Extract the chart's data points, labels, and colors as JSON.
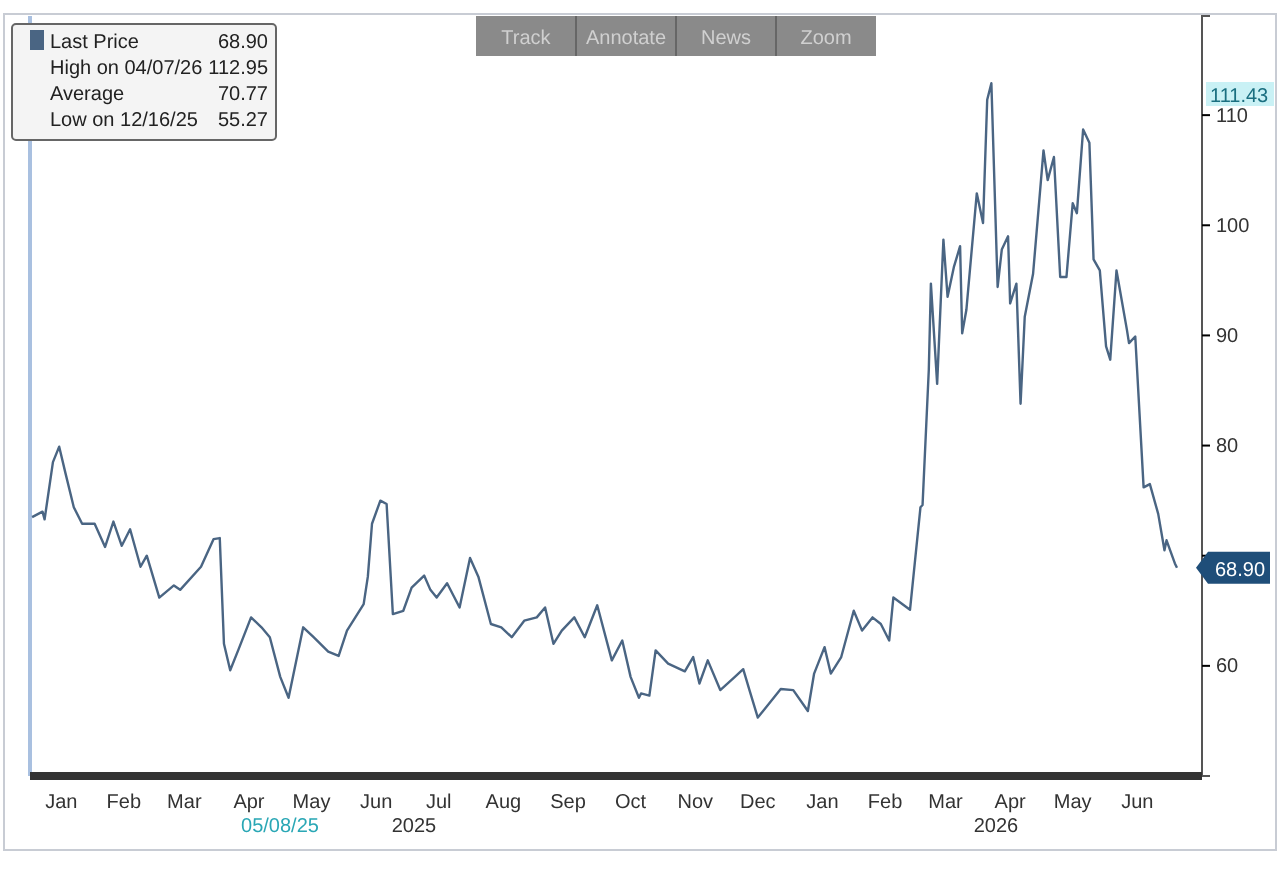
{
  "chart_data": {
    "type": "line",
    "legend": "top left",
    "xlim": [
      "2025-01-01",
      "2026-07-17"
    ],
    "ylim": [
      50,
      119
    ],
    "yticks": [
      60,
      {
        "value": 70,
        "label": null
      },
      80,
      90,
      100,
      110
    ],
    "xticks": [
      {
        "value": "2025-01-16",
        "label": "Jan"
      },
      {
        "value": "2025-02-15",
        "label": "Feb"
      },
      {
        "value": "2025-03-16",
        "label": "Mar"
      },
      {
        "value": "2025-04-16",
        "label": "Apr"
      },
      {
        "value": "2025-05-16",
        "label": "May"
      },
      {
        "value": "2025-06-16",
        "label": "Jun"
      },
      {
        "value": "2025-07-16",
        "label": "Jul"
      },
      {
        "value": "2025-08-16",
        "label": "Aug"
      },
      {
        "value": "2025-09-16",
        "label": "Sep"
      },
      {
        "value": "2025-10-16",
        "label": "Oct"
      },
      {
        "value": "2025-11-16",
        "label": "Nov"
      },
      {
        "value": "2025-12-16",
        "label": "Dec"
      },
      {
        "value": "2026-01-16",
        "label": "Jan"
      },
      {
        "value": "2026-02-15",
        "label": "Feb"
      },
      {
        "value": "2026-03-16",
        "label": "Mar"
      },
      {
        "value": "2026-04-16",
        "label": "Apr"
      },
      {
        "value": "2026-05-16",
        "label": "May"
      },
      {
        "value": "2026-06-16",
        "label": "Jun"
      }
    ],
    "annotations": [
      "68.90",
      "High on 04/07/26 112.95",
      "Average 70.77",
      "Low on 12/16/25 55.27",
      "Track",
      "Annotate",
      "News",
      "Zoom",
      "05/08/25",
      "2025",
      "2026",
      "111.43"
    ],
    "series": [
      {
        "name": "Last Price",
        "color": "#4a6583",
        "x": [
          "2025-01-02",
          "2025-01-07",
          "2025-01-08",
          "2025-01-12",
          "2025-01-15",
          "2025-01-18",
          "2025-01-22",
          "2025-01-26",
          "2025-02-01",
          "2025-02-06",
          "2025-02-10",
          "2025-02-14",
          "2025-02-18",
          "2025-02-23",
          "2025-02-26",
          "2025-03-04",
          "2025-03-11",
          "2025-03-14",
          "2025-03-24",
          "2025-03-30",
          "2025-04-02",
          "2025-04-04",
          "2025-04-07",
          "2025-04-11",
          "2025-04-17",
          "2025-04-22",
          "2025-04-26",
          "2025-05-01",
          "2025-05-05",
          "2025-05-12",
          "2025-05-17",
          "2025-05-24",
          "2025-05-29",
          "2025-06-02",
          "2025-06-10",
          "2025-06-12",
          "2025-06-14",
          "2025-06-18",
          "2025-06-21",
          "2025-06-24",
          "2025-06-29",
          "2025-07-03",
          "2025-07-09",
          "2025-07-12",
          "2025-07-15",
          "2025-07-20",
          "2025-07-26",
          "2025-07-31",
          "2025-08-04",
          "2025-08-10",
          "2025-08-15",
          "2025-08-20",
          "2025-08-26",
          "2025-09-01",
          "2025-09-05",
          "2025-09-09",
          "2025-09-13",
          "2025-09-19",
          "2025-09-24",
          "2025-09-30",
          "2025-10-07",
          "2025-10-12",
          "2025-10-16",
          "2025-10-20",
          "2025-10-21",
          "2025-10-25",
          "2025-10-28",
          "2025-11-03",
          "2025-11-11",
          "2025-11-15",
          "2025-11-18",
          "2025-11-22",
          "2025-11-28",
          "2025-12-05",
          "2025-12-09",
          "2025-12-12",
          "2025-12-16",
          "2025-12-27",
          "2026-01-02",
          "2026-01-09",
          "2026-01-12",
          "2026-01-17",
          "2026-01-20",
          "2026-01-25",
          "2026-01-31",
          "2026-02-04",
          "2026-02-09",
          "2026-02-13",
          "2026-02-17",
          "2026-02-19",
          "2026-02-27",
          "2026-03-04",
          "2026-03-05",
          "2026-03-08",
          "2026-03-09",
          "2026-03-12",
          "2026-03-15",
          "2026-03-17",
          "2026-03-20",
          "2026-03-23",
          "2026-03-24",
          "2026-03-26",
          "2026-03-31",
          "2026-04-03",
          "2026-04-05",
          "2026-04-07",
          "2026-04-10",
          "2026-04-12",
          "2026-04-15",
          "2026-04-16",
          "2026-04-19",
          "2026-04-21",
          "2026-04-23",
          "2026-04-27",
          "2026-05-02",
          "2026-05-04",
          "2026-05-07",
          "2026-05-10",
          "2026-05-13",
          "2026-05-16",
          "2026-05-18",
          "2026-05-21",
          "2026-05-24",
          "2026-05-26",
          "2026-05-29",
          "2026-06-01",
          "2026-06-03",
          "2026-06-06",
          "2026-06-11",
          "2026-06-12",
          "2026-06-15",
          "2026-06-19",
          "2026-06-22",
          "2026-06-26",
          "2026-06-29",
          "2026-06-30",
          "2026-07-04",
          "2026-07-05"
        ],
        "values": [
          73.5,
          74.0,
          73.3,
          78.5,
          79.9,
          77.5,
          74.4,
          72.9,
          72.9,
          70.8,
          73.1,
          70.9,
          72.4,
          69.0,
          70.0,
          66.2,
          67.3,
          66.9,
          69.0,
          71.5,
          71.6,
          62.0,
          59.6,
          61.5,
          64.4,
          63.5,
          62.6,
          59.0,
          57.1,
          63.5,
          62.6,
          61.3,
          60.9,
          63.2,
          65.6,
          68.1,
          72.9,
          75.0,
          74.7,
          64.7,
          65.0,
          67.1,
          68.2,
          66.9,
          66.2,
          67.5,
          65.3,
          69.8,
          68.1,
          63.8,
          63.5,
          62.6,
          64.1,
          64.4,
          65.3,
          62.0,
          63.2,
          64.4,
          62.6,
          65.5,
          60.5,
          62.3,
          59.0,
          57.1,
          57.5,
          57.3,
          61.4,
          60.2,
          59.5,
          60.8,
          58.4,
          60.5,
          57.8,
          59.0,
          59.7,
          57.8,
          55.3,
          57.9,
          57.8,
          55.9,
          59.3,
          61.7,
          59.3,
          60.8,
          65.0,
          63.2,
          64.4,
          63.8,
          62.3,
          66.2,
          65.1,
          74.4,
          74.6,
          86.9,
          94.7,
          85.6,
          98.7,
          93.5,
          96.2,
          98.1,
          90.2,
          92.3,
          102.9,
          100.2,
          111.4,
          112.9,
          94.4,
          97.8,
          99.0,
          92.9,
          94.7,
          83.8,
          91.7,
          95.6,
          106.8,
          104.1,
          106.2,
          95.3,
          95.3,
          102.0,
          101.1,
          108.7,
          107.5,
          96.9,
          95.9,
          89.0,
          87.8,
          95.9,
          90.5,
          89.3,
          89.9,
          76.2,
          76.5,
          73.8,
          70.5,
          71.4,
          69.3,
          68.9
        ]
      }
    ]
  }
}
